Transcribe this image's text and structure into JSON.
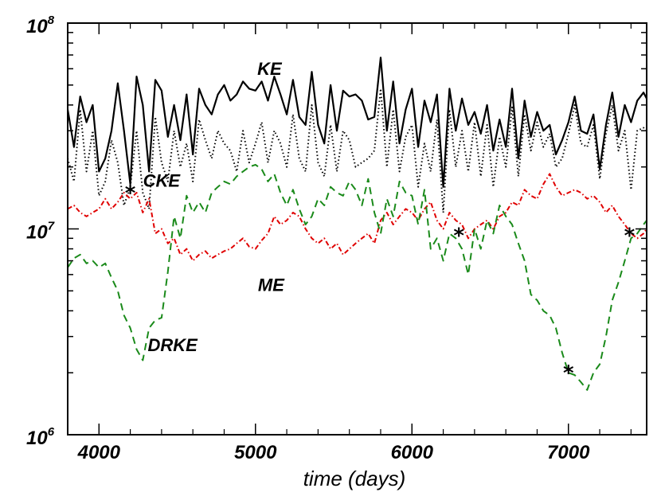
{
  "chart_data": {
    "type": "line",
    "title": "",
    "xlabel": "time (days)",
    "ylabel": "",
    "xlim": [
      3800,
      7500
    ],
    "ylim": [
      1000000,
      100000000
    ],
    "yscale": "log",
    "grid": false,
    "x_ticks": [
      4000,
      5000,
      6000,
      7000
    ],
    "x_tick_labels": [
      "4000",
      "5000",
      "6000",
      "7000"
    ],
    "y_tick_labels": [
      {
        "value": 1000000,
        "base": "10",
        "exp": "6"
      },
      {
        "value": 10000000,
        "base": "10",
        "exp": "7"
      },
      {
        "value": 100000000,
        "base": "10",
        "exp": "8"
      }
    ],
    "series": [
      {
        "name": "KE",
        "color": "#000000",
        "style": "solid",
        "x": [
          3800,
          3840,
          3880,
          3920,
          3960,
          4000,
          4040,
          4080,
          4120,
          4160,
          4200,
          4240,
          4280,
          4320,
          4360,
          4400,
          4440,
          4480,
          4520,
          4560,
          4600,
          4640,
          4680,
          4720,
          4760,
          4800,
          4840,
          4880,
          4920,
          4960,
          5000,
          5040,
          5080,
          5120,
          5160,
          5200,
          5240,
          5280,
          5320,
          5360,
          5400,
          5440,
          5480,
          5520,
          5560,
          5600,
          5640,
          5680,
          5720,
          5760,
          5800,
          5840,
          5880,
          5920,
          5960,
          6000,
          6040,
          6080,
          6120,
          6160,
          6200,
          6240,
          6280,
          6320,
          6360,
          6400,
          6440,
          6480,
          6520,
          6560,
          6600,
          6640,
          6680,
          6720,
          6760,
          6800,
          6840,
          6880,
          6920,
          6960,
          7000,
          7040,
          7080,
          7120,
          7160,
          7200,
          7240,
          7280,
          7320,
          7360,
          7400,
          7440,
          7480,
          7500
        ],
        "values": [
          38000000,
          25000000,
          44000000,
          33000000,
          40000000,
          19000000,
          22000000,
          30000000,
          51000000,
          30000000,
          16500000,
          55000000,
          40000000,
          19000000,
          53000000,
          47000000,
          28000000,
          40000000,
          27000000,
          45000000,
          23000000,
          48000000,
          40000000,
          36000000,
          45000000,
          50000000,
          42000000,
          45000000,
          52000000,
          48000000,
          47000000,
          52000000,
          42000000,
          55000000,
          45000000,
          36000000,
          53000000,
          35000000,
          32000000,
          58000000,
          32000000,
          26000000,
          50000000,
          30000000,
          47000000,
          44000000,
          45000000,
          42000000,
          34000000,
          35000000,
          68000000,
          30000000,
          52000000,
          26000000,
          38000000,
          48000000,
          25000000,
          42000000,
          33000000,
          45000000,
          16000000,
          48000000,
          30000000,
          43000000,
          32000000,
          37000000,
          29000000,
          40000000,
          24000000,
          34000000,
          25000000,
          48000000,
          22000000,
          42000000,
          28000000,
          37000000,
          30000000,
          32000000,
          23000000,
          27000000,
          33000000,
          44000000,
          30000000,
          29000000,
          36000000,
          19500000,
          32000000,
          46000000,
          28000000,
          40000000,
          33000000,
          42000000,
          46000000,
          43000000
        ]
      },
      {
        "name": "CKE",
        "color": "#000000",
        "style": "dotted",
        "x": [
          3800,
          3840,
          3880,
          3920,
          3960,
          4000,
          4040,
          4080,
          4120,
          4160,
          4200,
          4240,
          4280,
          4320,
          4360,
          4400,
          4440,
          4480,
          4520,
          4560,
          4600,
          4640,
          4680,
          4720,
          4760,
          4800,
          4840,
          4880,
          4920,
          4960,
          5000,
          5040,
          5080,
          5120,
          5160,
          5200,
          5240,
          5280,
          5320,
          5360,
          5400,
          5440,
          5480,
          5520,
          5560,
          5600,
          5640,
          5680,
          5720,
          5760,
          5800,
          5840,
          5880,
          5920,
          5960,
          6000,
          6040,
          6080,
          6120,
          6160,
          6200,
          6240,
          6280,
          6320,
          6360,
          6400,
          6440,
          6480,
          6520,
          6560,
          6600,
          6640,
          6680,
          6720,
          6760,
          6800,
          6840,
          6880,
          6920,
          6960,
          7000,
          7040,
          7080,
          7120,
          7160,
          7200,
          7240,
          7280,
          7320,
          7360,
          7400,
          7440,
          7480,
          7500
        ],
        "values": [
          22000000,
          17000000,
          38000000,
          19000000,
          30000000,
          14500000,
          17000000,
          27000000,
          21000000,
          13000000,
          16000000,
          30000000,
          15000000,
          12500000,
          35000000,
          21000000,
          17000000,
          30000000,
          20000000,
          26000000,
          17000000,
          34000000,
          27000000,
          22000000,
          30000000,
          26000000,
          24000000,
          19000000,
          30000000,
          21000000,
          26000000,
          33000000,
          21000000,
          30000000,
          26000000,
          20000000,
          36000000,
          22000000,
          19000000,
          40000000,
          21000000,
          18000000,
          32000000,
          19000000,
          30000000,
          27000000,
          20000000,
          21000000,
          22000000,
          24000000,
          48000000,
          20000000,
          38000000,
          19000000,
          28000000,
          32000000,
          16000000,
          26000000,
          19000000,
          34000000,
          12000000,
          38000000,
          20000000,
          30000000,
          19000000,
          33000000,
          18000000,
          32000000,
          16000000,
          28000000,
          20000000,
          39000000,
          18000000,
          36000000,
          24000000,
          33000000,
          25000000,
          29000000,
          20000000,
          22000000,
          29000000,
          40000000,
          26000000,
          25000000,
          32000000,
          17500000,
          29000000,
          40000000,
          24000000,
          30000000,
          15500000,
          30000000,
          31000000,
          30000000
        ]
      },
      {
        "name": "ME",
        "color": "#e00000",
        "style": "dashdot",
        "x": [
          3800,
          3840,
          3880,
          3920,
          3960,
          4000,
          4040,
          4080,
          4120,
          4160,
          4200,
          4240,
          4280,
          4320,
          4360,
          4400,
          4440,
          4480,
          4520,
          4560,
          4600,
          4640,
          4680,
          4720,
          4760,
          4800,
          4840,
          4880,
          4920,
          4960,
          5000,
          5040,
          5080,
          5120,
          5160,
          5200,
          5240,
          5280,
          5320,
          5360,
          5400,
          5440,
          5480,
          5520,
          5560,
          5600,
          5640,
          5680,
          5720,
          5760,
          5800,
          5840,
          5880,
          5920,
          5960,
          6000,
          6040,
          6080,
          6120,
          6160,
          6200,
          6240,
          6280,
          6320,
          6360,
          6400,
          6440,
          6480,
          6520,
          6560,
          6600,
          6640,
          6680,
          6720,
          6760,
          6800,
          6840,
          6880,
          6920,
          6960,
          7000,
          7040,
          7080,
          7120,
          7160,
          7200,
          7240,
          7280,
          7320,
          7360,
          7400,
          7440,
          7480,
          7500
        ],
        "values": [
          12500000,
          13000000,
          12000000,
          11500000,
          12000000,
          12500000,
          14000000,
          12500000,
          13500000,
          15000000,
          14000000,
          15000000,
          12000000,
          14000000,
          9500000,
          10000000,
          8500000,
          9000000,
          7500000,
          8000000,
          7000000,
          7500000,
          7800000,
          7200000,
          7500000,
          7800000,
          8000000,
          8500000,
          9000000,
          8200000,
          8000000,
          8800000,
          9500000,
          11500000,
          10500000,
          11000000,
          12000000,
          11500000,
          10000000,
          9000000,
          8500000,
          9000000,
          8000000,
          8500000,
          7500000,
          8000000,
          8500000,
          9000000,
          9500000,
          8500000,
          11000000,
          12000000,
          10500000,
          11500000,
          12500000,
          12000000,
          11000000,
          12500000,
          13500000,
          11000000,
          10000000,
          12000000,
          11000000,
          10500000,
          9000000,
          10000000,
          10500000,
          11000000,
          10000000,
          11500000,
          12000000,
          13500000,
          13000000,
          15500000,
          14500000,
          14000000,
          16500000,
          18500000,
          16000000,
          14500000,
          15000000,
          15500000,
          15000000,
          14000000,
          14500000,
          13500000,
          12000000,
          13000000,
          11500000,
          10500000,
          9500000,
          9000000,
          9500000,
          10000000
        ]
      },
      {
        "name": "DRKE",
        "color": "#1a8a1a",
        "style": "dashed",
        "x": [
          3800,
          3840,
          3880,
          3920,
          3960,
          4000,
          4040,
          4080,
          4120,
          4160,
          4200,
          4240,
          4280,
          4320,
          4360,
          4400,
          4440,
          4480,
          4520,
          4560,
          4600,
          4640,
          4680,
          4720,
          4760,
          4800,
          4840,
          4880,
          4920,
          4960,
          5000,
          5040,
          5080,
          5120,
          5160,
          5200,
          5240,
          5280,
          5320,
          5360,
          5400,
          5440,
          5480,
          5520,
          5560,
          5600,
          5640,
          5680,
          5720,
          5760,
          5800,
          5840,
          5880,
          5920,
          5960,
          6000,
          6040,
          6080,
          6120,
          6160,
          6200,
          6240,
          6280,
          6320,
          6360,
          6400,
          6440,
          6480,
          6520,
          6560,
          6600,
          6640,
          6680,
          6720,
          6760,
          6800,
          6840,
          6880,
          6920,
          6960,
          7000,
          7040,
          7080,
          7120,
          7160,
          7200,
          7240,
          7280,
          7320,
          7360,
          7400,
          7440,
          7480,
          7500
        ],
        "values": [
          6500000,
          7200000,
          7500000,
          6800000,
          7000000,
          6500000,
          6800000,
          5800000,
          5000000,
          3800000,
          3300000,
          2600000,
          2300000,
          3300000,
          3600000,
          3700000,
          6200000,
          11500000,
          9000000,
          14500000,
          12000000,
          13500000,
          12000000,
          15000000,
          16000000,
          17000000,
          16500000,
          18000000,
          19000000,
          20000000,
          20500000,
          19500000,
          17000000,
          18500000,
          15000000,
          13000000,
          15500000,
          12500000,
          10500000,
          11500000,
          14000000,
          13000000,
          16000000,
          15000000,
          14500000,
          17000000,
          15500000,
          13000000,
          17500000,
          12000000,
          9500000,
          14000000,
          11500000,
          17000000,
          15000000,
          14500000,
          10500000,
          15500000,
          8000000,
          9000000,
          7000000,
          9500000,
          9000000,
          8000000,
          6000000,
          10000000,
          8000000,
          11000000,
          9500000,
          13000000,
          11500000,
          10500000,
          8500000,
          7000000,
          4800000,
          4500000,
          4000000,
          3800000,
          3300000,
          2500000,
          2000000,
          1950000,
          1800000,
          1650000,
          2000000,
          2200000,
          3000000,
          4500000,
          5500000,
          7000000,
          9000000,
          9500000,
          10500000,
          11000000
        ]
      }
    ],
    "markers": [
      {
        "symbol": "*",
        "x": 4200,
        "y": 15000000
      },
      {
        "symbol": "*",
        "x": 6300,
        "y": 9300000
      },
      {
        "symbol": "*",
        "x": 7000,
        "y": 2000000
      },
      {
        "symbol": "*",
        "x": 7390,
        "y": 9300000
      }
    ],
    "annotations": [
      {
        "text": "KE",
        "x": 5090,
        "y": 56000000
      },
      {
        "text": "CKE",
        "x": 4400,
        "y": 16000000
      },
      {
        "text": "ME",
        "x": 5100,
        "y": 5000000
      },
      {
        "text": "DRKE",
        "x": 4470,
        "y": 2550000
      }
    ]
  }
}
